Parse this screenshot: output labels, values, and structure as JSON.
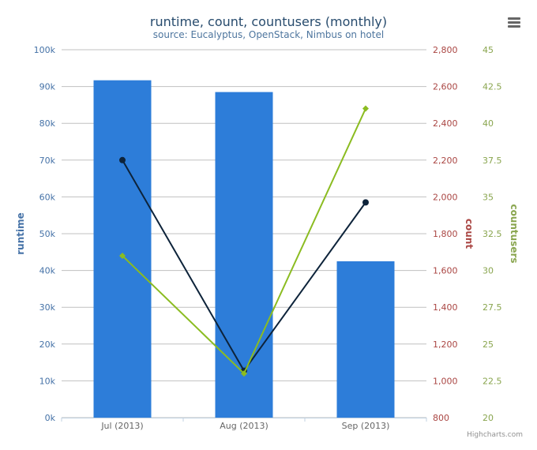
{
  "chart_data": {
    "type": "bar",
    "title": "runtime, count, countusers (monthly)",
    "subtitle": "source: Eucalyptus, OpenStack, Nimbus on hotel",
    "categories": [
      "Jul (2013)",
      "Aug (2013)",
      "Sep (2013)"
    ],
    "series": [
      {
        "name": "runtime",
        "type": "bar",
        "axis": "runtime",
        "color": "#2d7dd9",
        "values": [
          91700,
          88500,
          42500
        ]
      },
      {
        "name": "count",
        "type": "line",
        "axis": "count",
        "color": "#0d233a",
        "values": [
          2200,
          1055,
          1970
        ]
      },
      {
        "name": "countusers",
        "type": "line",
        "axis": "countusers",
        "color": "#8bbc21",
        "values": [
          31,
          23,
          41
        ]
      }
    ],
    "axes": {
      "runtime": {
        "label": "runtime",
        "color": "#4572a7",
        "range": [
          0,
          100000
        ],
        "ticks": [
          0,
          10000,
          20000,
          30000,
          40000,
          50000,
          60000,
          70000,
          80000,
          90000,
          100000
        ],
        "tick_labels": [
          "0k",
          "10k",
          "20k",
          "30k",
          "40k",
          "50k",
          "60k",
          "70k",
          "80k",
          "90k",
          "100k"
        ]
      },
      "count": {
        "label": "count",
        "color": "#aa4643",
        "range": [
          800,
          2800
        ],
        "ticks": [
          800,
          1000,
          1200,
          1400,
          1600,
          1800,
          2000,
          2200,
          2400,
          2600,
          2800
        ],
        "tick_labels": [
          "800",
          "1,000",
          "1,200",
          "1,400",
          "1,600",
          "1,800",
          "2,000",
          "2,200",
          "2,400",
          "2,600",
          "2,800"
        ]
      },
      "countusers": {
        "label": "countusers",
        "color": "#89a54e",
        "range": [
          20,
          45
        ],
        "ticks": [
          20,
          22.5,
          25,
          27.5,
          30,
          32.5,
          35,
          37.5,
          40,
          42.5,
          45
        ],
        "tick_labels": [
          "20",
          "22.5",
          "25",
          "27.5",
          "30",
          "32.5",
          "35",
          "37.5",
          "40",
          "42.5",
          "45"
        ]
      }
    },
    "grid": true,
    "legend": "none"
  },
  "credits": "Highcharts.com",
  "menu_icon": "menu-icon"
}
